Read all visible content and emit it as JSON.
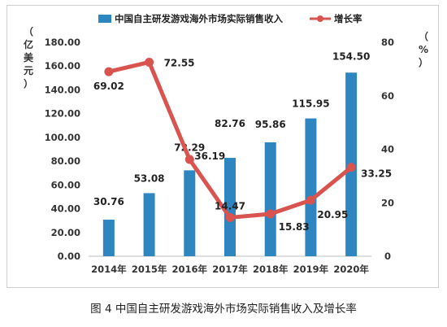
{
  "caption": "图 4  中国自主研发游戏海外市场实际销售收入及增长率",
  "chart_data": {
    "type": "bar",
    "categories": [
      "2014年",
      "2015年",
      "2016年",
      "2017年",
      "2018年",
      "2019年",
      "2020年"
    ],
    "series": [
      {
        "name": "中国自主研发游戏海外市场实际销售收入",
        "type": "bar",
        "axis": "left",
        "color": "#2e86c1",
        "values": [
          30.76,
          53.08,
          72.29,
          82.76,
          95.86,
          115.95,
          154.5
        ],
        "value_labels": [
          "30.76",
          "53.08",
          "72.29",
          "82.76",
          "95.86",
          "115.95",
          "154.50"
        ]
      },
      {
        "name": "增长率",
        "type": "line",
        "axis": "right",
        "color": "#d9534f",
        "values": [
          69.02,
          72.55,
          36.19,
          14.47,
          15.83,
          20.95,
          33.25
        ],
        "value_labels": [
          "69.02",
          "72.55",
          "36.19",
          "14.47",
          "15.83",
          "20.95",
          "33.25"
        ]
      }
    ],
    "y_left": {
      "label_chars": [
        "（",
        "亿",
        "美",
        "元",
        "）"
      ],
      "ylim": [
        0,
        180
      ],
      "ticks": [
        "0.00",
        "20.00",
        "40.00",
        "60.00",
        "80.00",
        "100.00",
        "120.00",
        "140.00",
        "160.00",
        "180.00"
      ]
    },
    "y_right": {
      "label_chars": [
        "（",
        "%",
        "）"
      ],
      "ylim": [
        0,
        80
      ],
      "ticks": [
        "0",
        "20",
        "40",
        "60",
        "80"
      ]
    },
    "legend": "top",
    "grid": false
  }
}
